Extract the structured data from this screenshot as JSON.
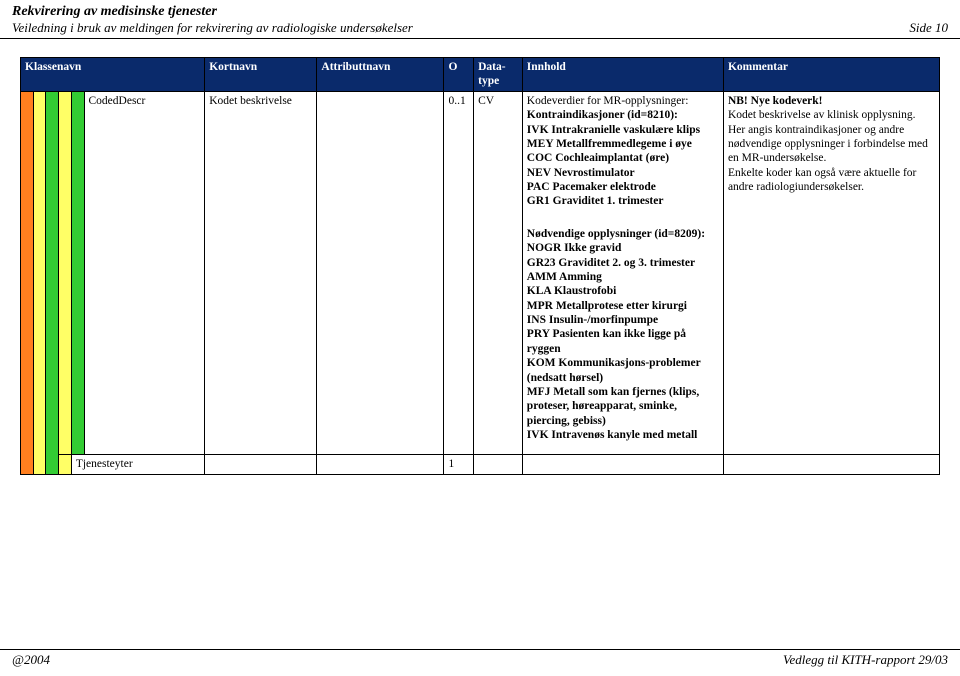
{
  "header": {
    "title1": "Rekvirering av medisinske tjenester",
    "title2": "Veiledning i bruk av meldingen for rekvirering av radiologiske undersøkelser",
    "page": "Side 10"
  },
  "table": {
    "headers": {
      "klassenavn": "Klassenavn",
      "kortnavn": "Kortnavn",
      "attributtnavn": "Attributtnavn",
      "o": "O",
      "datatype": "Data-type",
      "innhold": "Innhold",
      "kommentar": "Kommentar"
    },
    "row1": {
      "klassenavn": "CodedDescr",
      "kortnavn": "Kodet beskrivelse",
      "attributtnavn": "",
      "o": "0..1",
      "datatype": "CV",
      "innhold_block1_heading": "Kodeverdier for MR-opplysninger:",
      "innhold_block1_lines": [
        "Kontraindikasjoner (id=8210):",
        "IVK Intrakranielle vaskulære klips",
        "MEY Metallfremmedlegeme i øye",
        "COC Cochleaimplantat (øre)",
        "NEV Nevrostimulator",
        "PAC Pacemaker elektrode",
        "GR1 Graviditet 1. trimester"
      ],
      "innhold_block2_heading": "Nødvendige opplysninger (id=8209):",
      "innhold_block2_lines": [
        "NOGR Ikke gravid",
        "GR23 Graviditet 2. og 3. trimester",
        "AMM Amming",
        "KLA Klaustrofobi",
        "MPR Metallprotese etter kirurgi",
        "INS Insulin-/morfinpumpe",
        "PRY Pasienten kan ikke ligge på ryggen",
        "KOM Kommunikasjons-problemer (nedsatt hørsel)",
        "MFJ Metall som kan fjernes (klips, proteser, høreapparat, sminke, piercing, gebiss)",
        "IVK Intravenøs kanyle med metall"
      ],
      "kommentar_bold": "NB! Nye kodeverk!",
      "kommentar_lines": [
        "Kodet beskrivelse av klinisk opplysning.",
        "Her angis kontraindikasjoner og andre nødvendige opplysninger i forbindelse med en MR-undersøkelse.",
        "Enkelte koder kan også være aktuelle for andre radiologiundersøkelser."
      ]
    },
    "row2": {
      "klassenavn": "Tjenesteyter",
      "o": "1"
    }
  },
  "footer": {
    "left": "@2004",
    "right": "Vedlegg til KITH-rapport 29/03"
  },
  "colors": {
    "header_bg": "#0a2a6b",
    "stripe_orange": "#ff7f1f",
    "stripe_yellow": "#ffff66",
    "stripe_green": "#33cc33"
  }
}
